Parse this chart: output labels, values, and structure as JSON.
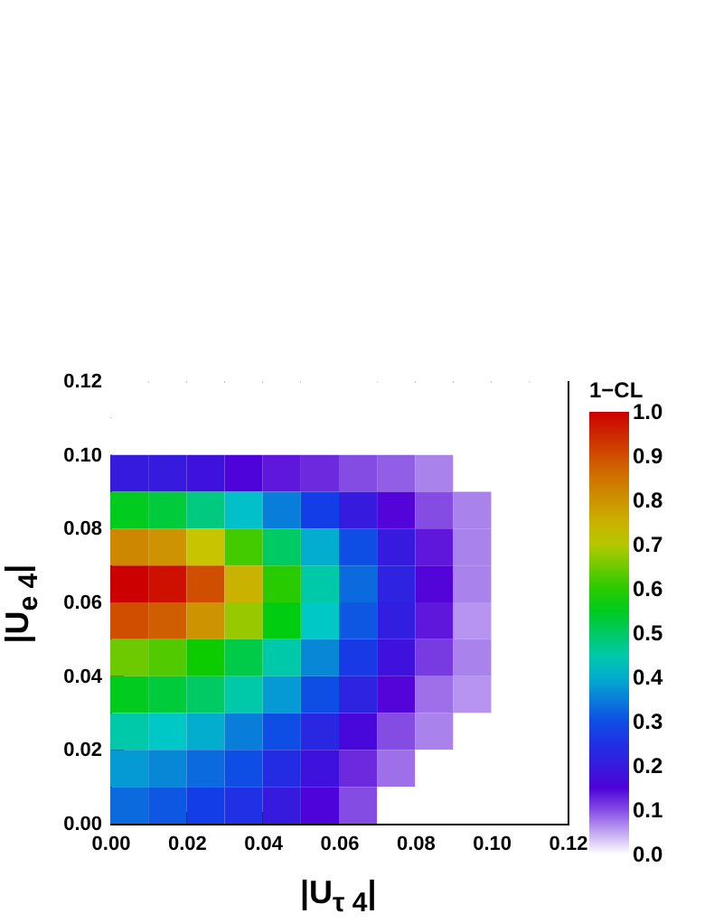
{
  "chart_data": {
    "type": "heatmap",
    "xlabel": "|U$_{τ 4}$|",
    "ylabel": "|U$_{e 4}$|",
    "clabel": "1−CL",
    "xlim": [
      0,
      0.12
    ],
    "ylim": [
      0,
      0.12
    ],
    "xticks": [
      {
        "value": 0,
        "label": "0.00"
      },
      {
        "value": 0.02,
        "label": "0.02"
      },
      {
        "value": 0.04,
        "label": "0.04"
      },
      {
        "value": 0.06,
        "label": "0.06"
      },
      {
        "value": 0.08,
        "label": "0.08"
      },
      {
        "value": 0.1,
        "label": "0.10"
      },
      {
        "value": 0.12,
        "label": "0.12"
      }
    ],
    "yticks": [
      {
        "value": 0,
        "label": "0.00"
      },
      {
        "value": 0.02,
        "label": "0.02"
      },
      {
        "value": 0.04,
        "label": "0.04"
      },
      {
        "value": 0.06,
        "label": "0.06"
      },
      {
        "value": 0.08,
        "label": "0.08"
      },
      {
        "value": 0.1,
        "label": "0.10"
      },
      {
        "value": 0.12,
        "label": "0.12"
      }
    ],
    "clim": [
      0,
      1
    ],
    "cticks": [
      {
        "value": 0,
        "label": "0.0"
      },
      {
        "value": 0.1,
        "label": "0.1"
      },
      {
        "value": 0.2,
        "label": "0.2"
      },
      {
        "value": 0.3,
        "label": "0.3"
      },
      {
        "value": 0.4,
        "label": "0.4"
      },
      {
        "value": 0.5,
        "label": "0.5"
      },
      {
        "value": 0.6,
        "label": "0.6"
      },
      {
        "value": 0.7,
        "label": "0.7"
      },
      {
        "value": 0.8,
        "label": "0.8"
      },
      {
        "value": 0.9,
        "label": "0.9"
      },
      {
        "value": 1,
        "label": "1.0"
      }
    ],
    "cells": [
      [
        0,
        0,
        0,
        0,
        0,
        0,
        0,
        0,
        0,
        0,
        0,
        0
      ],
      [
        0,
        0,
        0,
        0,
        0,
        0,
        0,
        0,
        0,
        0,
        0,
        0
      ],
      [
        0.2,
        0.2,
        0.18,
        0.15,
        0.13,
        0.12,
        0.1,
        0.09,
        0.07,
        0,
        0,
        0
      ],
      [
        0.55,
        0.53,
        0.48,
        0.42,
        0.35,
        0.28,
        0.2,
        0.14,
        0.1,
        0.07,
        0,
        0
      ],
      [
        0.82,
        0.8,
        0.72,
        0.62,
        0.5,
        0.4,
        0.3,
        0.2,
        0.13,
        0.07,
        0,
        0
      ],
      [
        1.0,
        0.98,
        0.9,
        0.75,
        0.6,
        0.45,
        0.33,
        0.22,
        0.14,
        0.07,
        0,
        0
      ],
      [
        0.9,
        0.88,
        0.8,
        0.68,
        0.56,
        0.43,
        0.31,
        0.21,
        0.13,
        0.06,
        0,
        0
      ],
      [
        0.65,
        0.63,
        0.58,
        0.52,
        0.45,
        0.36,
        0.27,
        0.18,
        0.11,
        0.07,
        0,
        0
      ],
      [
        0.55,
        0.53,
        0.5,
        0.45,
        0.38,
        0.3,
        0.22,
        0.14,
        0.08,
        0.06,
        0,
        0
      ],
      [
        0.45,
        0.43,
        0.4,
        0.35,
        0.3,
        0.23,
        0.16,
        0.1,
        0.07,
        0,
        0,
        0
      ],
      [
        0.38,
        0.36,
        0.33,
        0.3,
        0.24,
        0.18,
        0.12,
        0.08,
        0,
        0,
        0,
        0
      ],
      [
        0.33,
        0.31,
        0.28,
        0.25,
        0.2,
        0.15,
        0.1,
        0,
        0,
        0,
        0,
        0
      ]
    ]
  }
}
